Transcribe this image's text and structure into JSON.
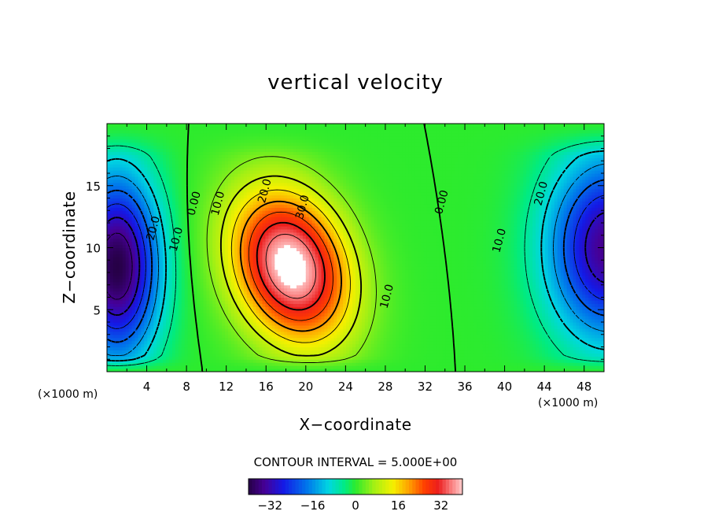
{
  "chart_data": {
    "type": "heatmap",
    "title": "vertical velocity",
    "xlabel": "X−coordinate",
    "ylabel": "Z−coordinate",
    "x_unit": "(×1000 m)",
    "y_unit": "(×1000 m)",
    "xlim": [
      0,
      50
    ],
    "ylim": [
      0,
      20
    ],
    "x_ticks": [
      4,
      8,
      12,
      16,
      20,
      24,
      28,
      32,
      36,
      40,
      44,
      48
    ],
    "x_tick_labels": [
      "4",
      "8",
      "12",
      "16",
      "20",
      "24",
      "28",
      "32",
      "36",
      "40",
      "44",
      "48"
    ],
    "y_ticks": [
      5,
      10,
      15
    ],
    "y_tick_labels": [
      "5",
      "10",
      "15"
    ],
    "field": {
      "description": "updraft core and two downdraft cores",
      "updraft": {
        "x": 18.5,
        "z": 8.5,
        "max": 40
      },
      "downdraft_left": {
        "x": 1.0,
        "z": 8.5,
        "min": -40
      },
      "downdraft_right": {
        "x": 50.5,
        "z": 10.0,
        "min": -35
      }
    },
    "contour_interval": 5.0,
    "contour_labels": [
      {
        "text": "0.00",
        "x": 9.1,
        "z": 13.5
      },
      {
        "text": "10.0",
        "x": 11.5,
        "z": 13.5
      },
      {
        "text": "20.0",
        "x": 16.2,
        "z": 14.5
      },
      {
        "text": "30.0",
        "x": 20.0,
        "z": 13.2
      },
      {
        "text": "10.0",
        "x": 28.5,
        "z": 6.0
      },
      {
        "text": "0.00",
        "x": 34.0,
        "z": 13.6
      },
      {
        "text": "20.0",
        "x": 5.0,
        "z": 11.5
      },
      {
        "text": "10.0",
        "x": 7.3,
        "z": 10.6
      },
      {
        "text": "10.0",
        "x": 39.8,
        "z": 10.5
      },
      {
        "text": "20.0",
        "x": 44.0,
        "z": 14.3
      }
    ],
    "contour_interval_label": "CONTOUR INTERVAL =  5.000E+00",
    "colorbar": {
      "min": -40,
      "max": 40,
      "ticks": [
        -32,
        -16,
        0,
        16,
        32
      ],
      "tick_labels": [
        "−32",
        "−16",
        "0",
        "16",
        "32"
      ]
    },
    "grid": false,
    "legend": "colorbar-bottom"
  }
}
